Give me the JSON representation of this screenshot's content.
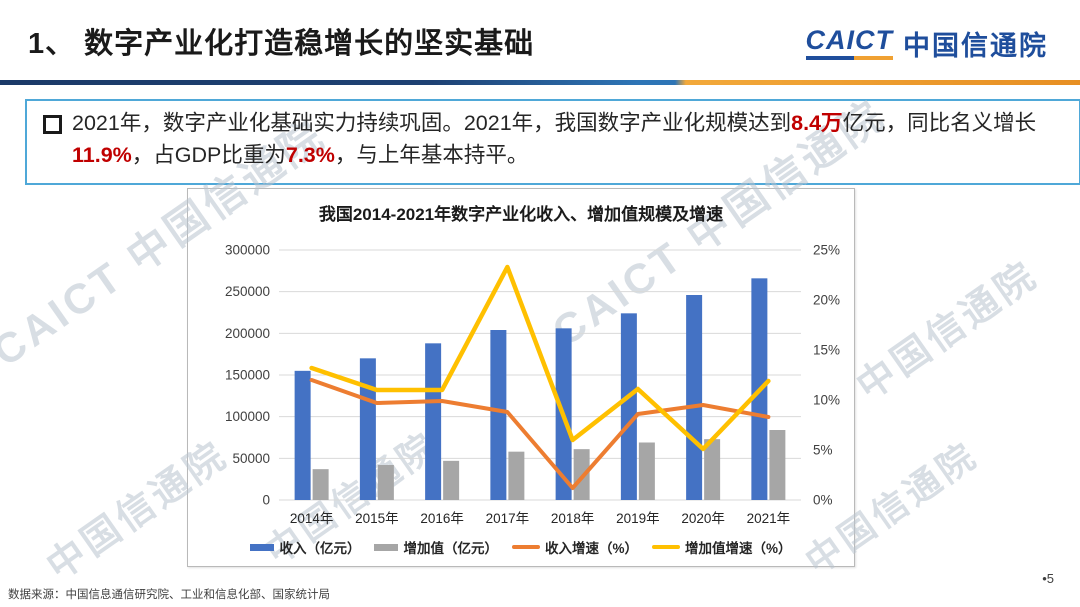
{
  "slide": {
    "title": "1、 数字产业化打造稳增长的坚实基础",
    "page_number": "•5",
    "source_note": "数据来源：中国信息通信研究院、工业和信息化部、国家统计局",
    "watermark_text": "CAICT 中国信通院",
    "watermark_text_short": "中国信通院"
  },
  "logo": {
    "acronym": "CAICT",
    "name": "中国信通院",
    "brand_blue": "#1F4E9C",
    "brand_orange": "#F0A132"
  },
  "callout": {
    "bullet": "□",
    "highlight_color": "#C00000",
    "segments": [
      {
        "text": "2021年，数字产业化基础实力持续巩固。2021年，我国数字产业化规模达到",
        "em": false
      },
      {
        "text": "8.4万",
        "em": true
      },
      {
        "text": "亿元，同比名义增长",
        "em": false,
        "break_after": true
      },
      {
        "text": "11.9%",
        "em": true
      },
      {
        "text": "，占GDP比重为",
        "em": false
      },
      {
        "text": "7.3%",
        "em": true
      },
      {
        "text": "，与上年基本持平。",
        "em": false
      }
    ]
  },
  "chart_data": {
    "type": "bar",
    "subtype": "combo bar+line, dual axis",
    "title": "我国2014-2021年数字产业化收入、增加值规模及增速",
    "categories": [
      "2014年",
      "2015年",
      "2016年",
      "2017年",
      "2018年",
      "2019年",
      "2020年",
      "2021年"
    ],
    "series": [
      {
        "name": "收入（亿元）",
        "type": "bar",
        "axis": "left",
        "color": "#4472C4",
        "values": [
          155000,
          170000,
          188000,
          204000,
          206000,
          224000,
          246000,
          266000
        ]
      },
      {
        "name": "增加值（亿元）",
        "type": "bar",
        "axis": "left",
        "color": "#A6A6A6",
        "values": [
          37000,
          42000,
          47000,
          58000,
          61000,
          69000,
          73000,
          84000
        ]
      },
      {
        "name": "收入增速（%）",
        "type": "line",
        "axis": "right",
        "color": "#ED7D31",
        "values": [
          12.0,
          9.7,
          9.9,
          8.8,
          1.2,
          8.6,
          9.5,
          8.3
        ]
      },
      {
        "name": "增加值增速（%）",
        "type": "line",
        "axis": "right",
        "color": "#FFC000",
        "values": [
          13.2,
          11.0,
          11.0,
          23.3,
          6.0,
          11.1,
          5.1,
          11.9
        ]
      }
    ],
    "left_axis": {
      "min": 0,
      "max": 300000,
      "step": 50000
    },
    "right_axis": {
      "min": 0,
      "max": 25,
      "step": 5,
      "suffix": "%"
    },
    "grid": true,
    "legend_position": "bottom"
  }
}
